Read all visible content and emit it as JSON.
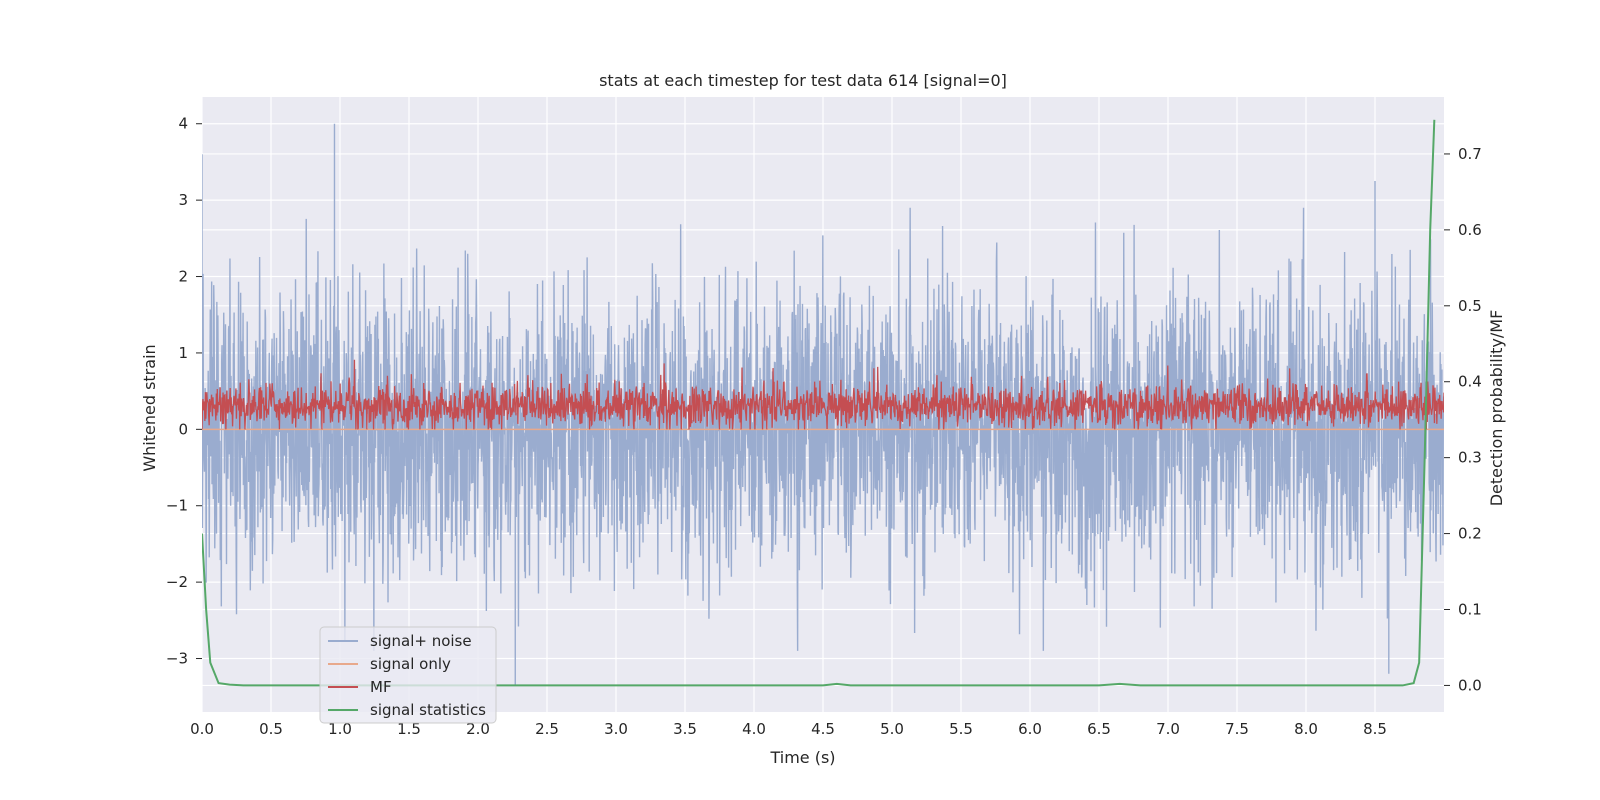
{
  "chart_data": {
    "type": "line",
    "title": "stats at each timestep for test data 614 [signal=0]",
    "xlabel": "Time (s)",
    "ylabel": "Whitened strain",
    "y2label": "Detection probability/MF",
    "xlim": [
      0.0,
      9.0
    ],
    "ylim": [
      -3.7,
      4.35
    ],
    "y2lim": [
      -0.035,
      0.775
    ],
    "xticks": [
      "0.0",
      "0.5",
      "1.0",
      "1.5",
      "2.0",
      "2.5",
      "3.0",
      "3.5",
      "4.0",
      "4.5",
      "5.0",
      "5.5",
      "6.0",
      "6.5",
      "7.0",
      "7.5",
      "8.0",
      "8.5"
    ],
    "yticks": [
      "−3",
      "−2",
      "−1",
      "0",
      "1",
      "2",
      "3",
      "4"
    ],
    "y2ticks": [
      "0.0",
      "0.1",
      "0.2",
      "0.3",
      "0.4",
      "0.5",
      "0.6",
      "0.7"
    ],
    "grid": true,
    "legend": {
      "placement": "lower-left",
      "entries": [
        "signal+ noise",
        "signal only",
        "MF",
        "signal statistics"
      ]
    },
    "colors": {
      "signal_noise": "#9aaccf",
      "signal_only": "#e8a98c",
      "mf": "#c44e52",
      "signal_statistics": "#55a868",
      "plot_bg": "#eaeaf2",
      "grid": "#ffffff"
    },
    "series": [
      {
        "name": "signal+ noise",
        "axis": "left",
        "style": "noise",
        "description_values": {
          "amplitude_range": [
            -3.4,
            4.0
          ],
          "peaks": [
            [
              0.0,
              3.6
            ],
            [
              0.96,
              4.0
            ],
            [
              8.5,
              3.25
            ],
            [
              2.27,
              -3.35
            ],
            [
              8.6,
              -3.2
            ]
          ]
        }
      },
      {
        "name": "signal only",
        "axis": "left",
        "values_constant": 0.0
      },
      {
        "name": "MF",
        "axis": "left",
        "style": "noise",
        "description_values": {
          "amplitude_range": [
            0.0,
            1.0
          ]
        }
      },
      {
        "name": "signal statistics",
        "axis": "right",
        "x": [
          0.0,
          0.03,
          0.06,
          0.12,
          0.2,
          0.3,
          1.0,
          2.0,
          3.0,
          4.0,
          4.5,
          4.6,
          4.7,
          5.0,
          6.0,
          6.5,
          6.65,
          6.8,
          7.0,
          8.0,
          8.7,
          8.78,
          8.82,
          8.86,
          8.9,
          8.93
        ],
        "values": [
          0.2,
          0.1,
          0.03,
          0.003,
          0.001,
          0.0,
          0.0,
          0.0,
          0.0,
          0.0,
          0.0,
          0.002,
          0.0,
          0.0,
          0.0,
          0.0,
          0.002,
          0.0,
          0.0,
          0.0,
          0.0,
          0.003,
          0.03,
          0.3,
          0.6,
          0.745
        ]
      }
    ]
  }
}
